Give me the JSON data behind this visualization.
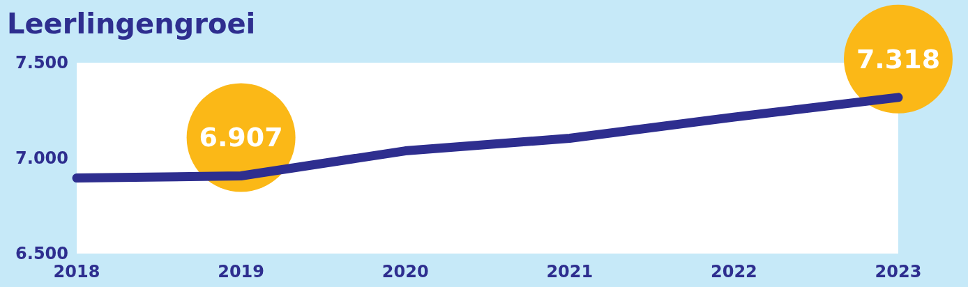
{
  "chart_data": {
    "type": "line",
    "title": "Leerlingengroei",
    "categories": [
      "2018",
      "2019",
      "2020",
      "2021",
      "2022",
      "2023"
    ],
    "series": [
      {
        "color": "#2e2e8f",
        "values": [
          6896,
          6907,
          7038,
          7104,
          7215,
          7318
        ],
        "value_labels": [
          null,
          "6.907",
          null,
          null,
          null,
          "7.318"
        ]
      }
    ],
    "ylim": [
      6500,
      7500
    ],
    "yticks": [
      {
        "value": 6500,
        "label": "6.500"
      },
      {
        "value": 7000,
        "label": "7.000"
      },
      {
        "value": 7500,
        "label": "7.500"
      }
    ],
    "grid": false,
    "marker": "none",
    "line_style": "solid"
  }
}
